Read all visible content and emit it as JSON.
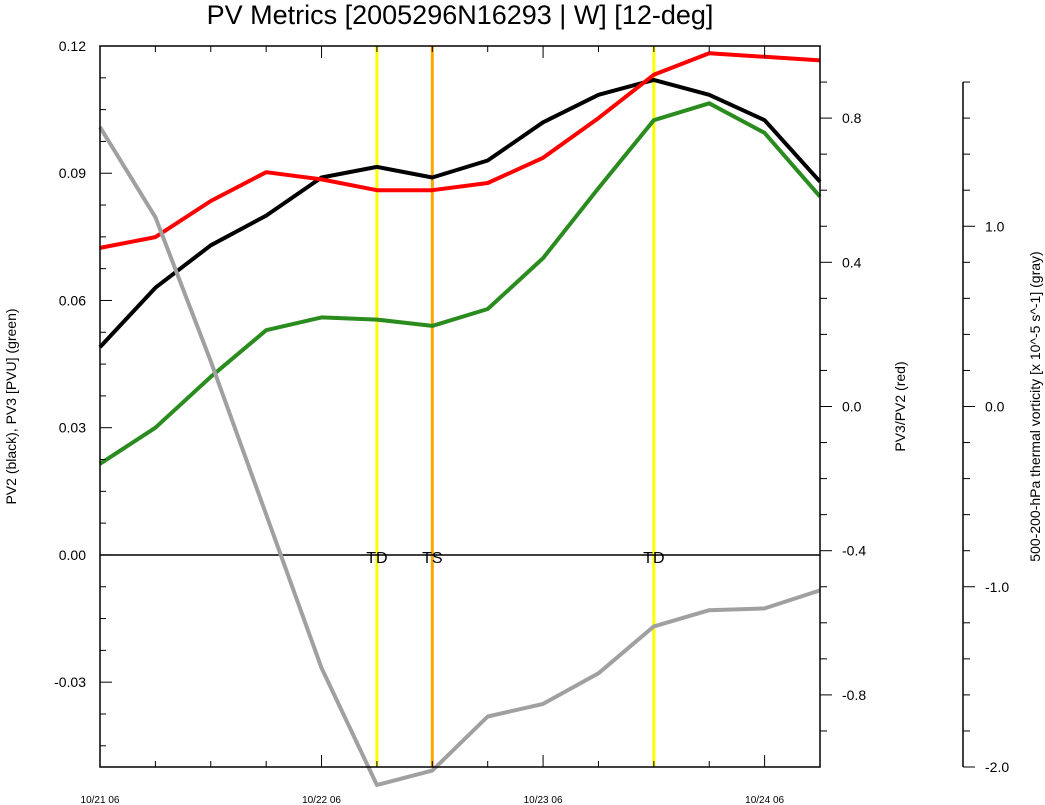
{
  "chart_data": {
    "type": "line",
    "title": "PV Metrics [2005296N16293 | W] [12-deg]",
    "x": [
      0,
      0.25,
      0.5,
      0.75,
      1.0,
      1.25,
      1.5,
      1.75,
      2.0,
      2.25,
      2.5,
      2.75,
      3.0,
      3.25
    ],
    "x_range": [
      0,
      3.25
    ],
    "x_tick_positions": [
      0,
      1,
      2,
      3
    ],
    "x_tick_labels": [
      "10/21 06",
      "10/22 06",
      "10/23 06",
      "10/24 06"
    ],
    "left_axis": {
      "label": "PV2 (black), PV3 [PVU] (green)",
      "range": [
        -0.05,
        0.12
      ],
      "ticks": [
        -0.03,
        0.0,
        0.03,
        0.06,
        0.09,
        0.12
      ],
      "tick_labels": [
        "-0.03",
        "0.00",
        "0.03",
        "0.06",
        "0.09",
        "0.12"
      ]
    },
    "right_axis": {
      "label": "PV3/PV2 (red)",
      "range": [
        -1.0,
        1.0
      ],
      "ticks": [
        -0.8,
        -0.4,
        0.0,
        0.4,
        0.8
      ],
      "tick_labels": [
        "-0.8",
        "-0.4",
        "0.0",
        "0.4",
        "0.8"
      ]
    },
    "far_right_axis": {
      "label": "500-200-hPa thermal vorticity [x 10^-5 s^-1] (gray)",
      "range": [
        -2.0,
        2.0
      ],
      "ticks": [
        -2.0,
        -1.0,
        0.0,
        1.0
      ],
      "tick_labels": [
        "-2.0",
        "-1.0",
        "0.0",
        "1.0"
      ]
    },
    "zero_line": 0.0,
    "series": [
      {
        "key": "pv2",
        "axis": "left",
        "color": "#000000",
        "values": [
          0.049,
          0.063,
          0.073,
          0.08,
          0.089,
          0.0915,
          0.089,
          0.093,
          0.102,
          0.1085,
          0.112,
          0.1085,
          0.1025,
          0.088
        ]
      },
      {
        "key": "pv3",
        "axis": "left",
        "color": "#2a8c1e",
        "values": [
          0.0215,
          0.03,
          0.042,
          0.053,
          0.056,
          0.0555,
          0.054,
          0.058,
          0.07,
          0.0865,
          0.1025,
          0.1065,
          0.0995,
          0.0845
        ]
      },
      {
        "key": "ratio",
        "axis": "right",
        "color": "#ff0000",
        "values": [
          0.44,
          0.47,
          0.57,
          0.65,
          0.63,
          0.6,
          0.6,
          0.62,
          0.69,
          0.8,
          0.92,
          0.98,
          0.97,
          0.96
        ]
      },
      {
        "key": "vorticity",
        "axis": "far_right",
        "color": "#a0a0a0",
        "values": [
          1.55,
          1.05,
          0.25,
          -0.6,
          -1.45,
          -2.1,
          -2.02,
          -1.72,
          -1.65,
          -1.48,
          -1.22,
          -1.13,
          -1.12,
          -1.02
        ]
      }
    ],
    "events": [
      {
        "x": 1.25,
        "label": "TD",
        "color": "#ffff00"
      },
      {
        "x": 1.5,
        "label": "TS",
        "color": "#ffa500"
      },
      {
        "x": 2.5,
        "label": "TD",
        "color": "#ffff00"
      }
    ]
  }
}
